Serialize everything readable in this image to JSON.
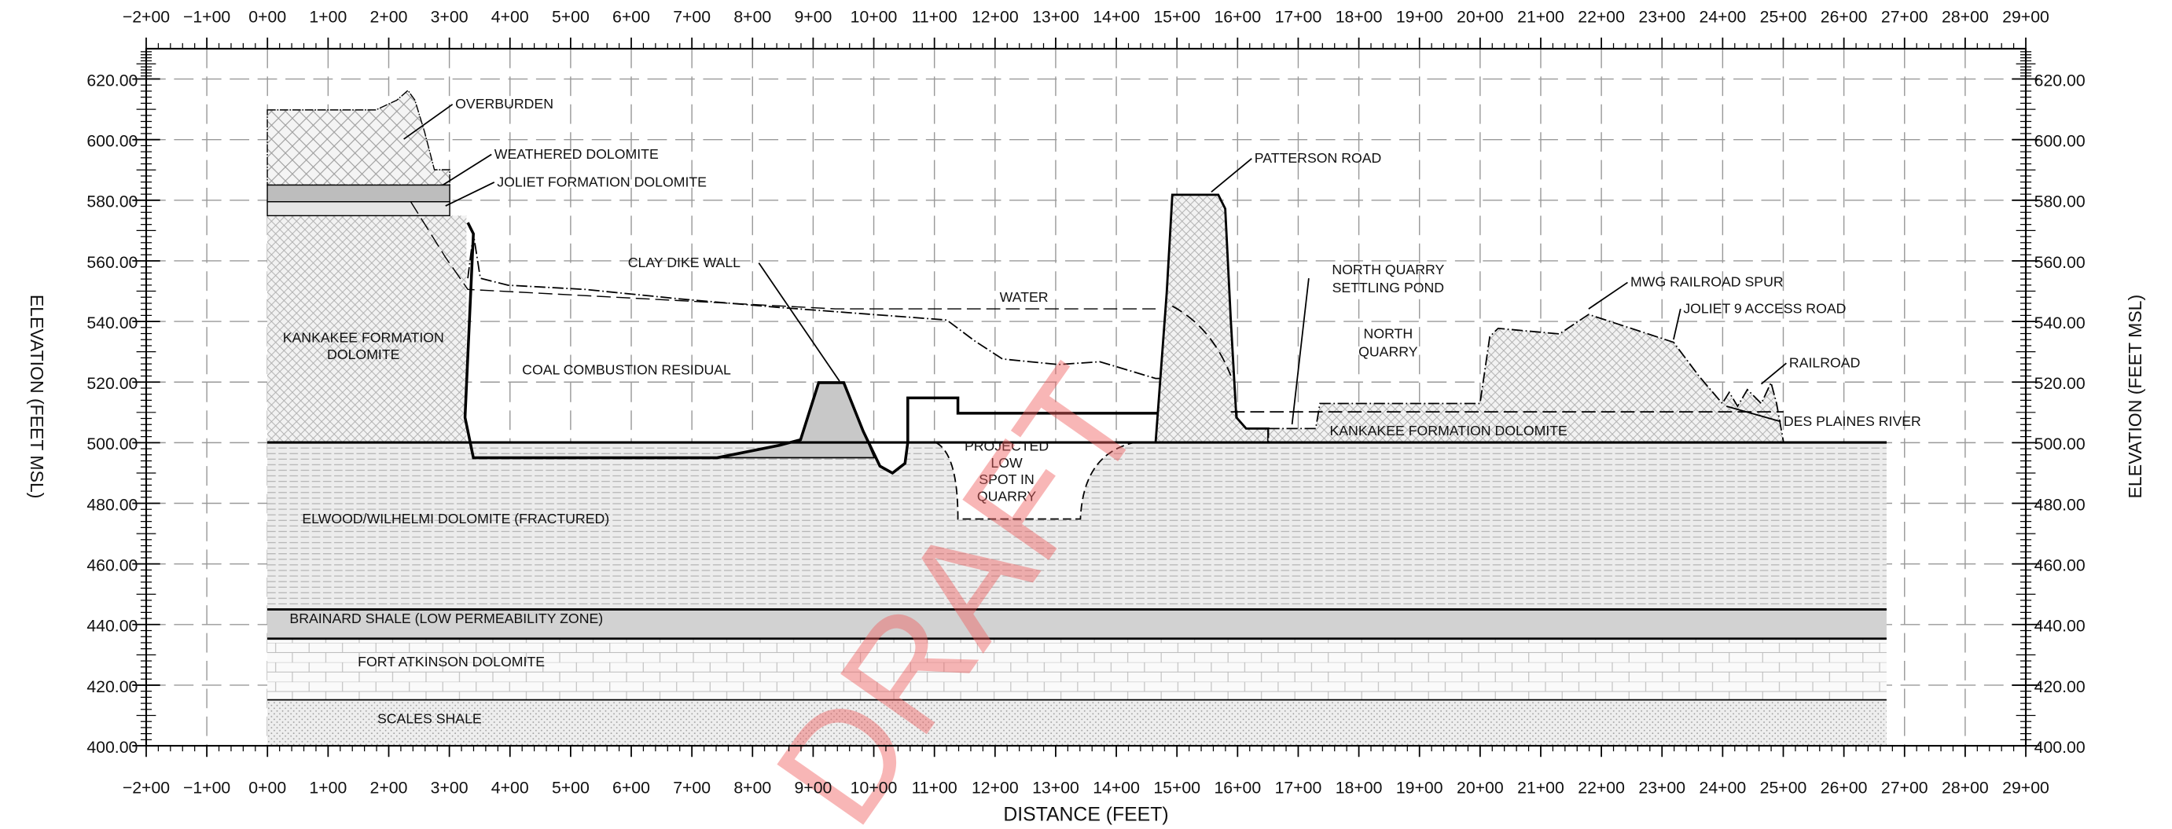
{
  "axes": {
    "x_label": "DISTANCE (FEET)",
    "y_label": "ELEVATION (FEET MSL)",
    "y2_label": "ELEVATION (FEET MSL)",
    "xlim": [
      -200,
      2900
    ],
    "ylim": [
      400,
      630
    ],
    "xticks": [
      {
        "value": -200,
        "label": "−2+00"
      },
      {
        "value": -100,
        "label": "−1+00"
      },
      {
        "value": 0,
        "label": "0+00"
      },
      {
        "value": 100,
        "label": "1+00"
      },
      {
        "value": 200,
        "label": "2+00"
      },
      {
        "value": 300,
        "label": "3+00"
      },
      {
        "value": 400,
        "label": "4+00"
      },
      {
        "value": 500,
        "label": "5+00"
      },
      {
        "value": 600,
        "label": "6+00"
      },
      {
        "value": 700,
        "label": "7+00"
      },
      {
        "value": 800,
        "label": "8+00"
      },
      {
        "value": 900,
        "label": "9+00"
      },
      {
        "value": 1000,
        "label": "10+00"
      },
      {
        "value": 1100,
        "label": "11+00"
      },
      {
        "value": 1200,
        "label": "12+00"
      },
      {
        "value": 1300,
        "label": "13+00"
      },
      {
        "value": 1400,
        "label": "14+00"
      },
      {
        "value": 1500,
        "label": "15+00"
      },
      {
        "value": 1600,
        "label": "16+00"
      },
      {
        "value": 1700,
        "label": "17+00"
      },
      {
        "value": 1800,
        "label": "18+00"
      },
      {
        "value": 1900,
        "label": "19+00"
      },
      {
        "value": 2000,
        "label": "20+00"
      },
      {
        "value": 2100,
        "label": "21+00"
      },
      {
        "value": 2200,
        "label": "22+00"
      },
      {
        "value": 2300,
        "label": "23+00"
      },
      {
        "value": 2400,
        "label": "24+00"
      },
      {
        "value": 2500,
        "label": "25+00"
      },
      {
        "value": 2600,
        "label": "26+00"
      },
      {
        "value": 2700,
        "label": "27+00"
      },
      {
        "value": 2800,
        "label": "28+00"
      },
      {
        "value": 2900,
        "label": "29+00"
      }
    ],
    "yticks": [
      {
        "value": 400,
        "label": "400.00"
      },
      {
        "value": 420,
        "label": "420.00"
      },
      {
        "value": 440,
        "label": "440.00"
      },
      {
        "value": 460,
        "label": "460.00"
      },
      {
        "value": 480,
        "label": "480.00"
      },
      {
        "value": 500,
        "label": "500.00"
      },
      {
        "value": 520,
        "label": "520.00"
      },
      {
        "value": 540,
        "label": "540.00"
      },
      {
        "value": 560,
        "label": "560.00"
      },
      {
        "value": 580,
        "label": "580.00"
      },
      {
        "value": 600,
        "label": "600.00"
      },
      {
        "value": 620,
        "label": "620.00"
      }
    ]
  },
  "labels": {
    "overburden": "OVERBURDEN",
    "weathered_dolomite": "WEATHERED DOLOMITE",
    "joliet": "JOLIET FORMATION DOLOMITE",
    "kankakee_left": [
      "KANKAKEE FORMATION",
      "DOLOMITE"
    ],
    "clay_dike": "CLAY DIKE WALL",
    "water": "WATER",
    "ccr": "COAL COMBUSTION RESIDUAL",
    "patterson": "PATTERSON ROAD",
    "settling_pond": [
      "NORTH QUARRY",
      "SETTLING POND"
    ],
    "north_quarry": [
      "NORTH",
      "QUARRY"
    ],
    "mwg": "MWG RAILROAD SPUR",
    "access_road": "JOLIET 9 ACCESS ROAD",
    "railroad": "RAILROAD",
    "des_plaines": "DES PLAINES RIVER",
    "kankakee_right": "KANKAKEE FORMATION DOLOMITE",
    "low_spot": [
      "PROJECTED",
      "LOW",
      "SPOT IN",
      "QUARRY"
    ],
    "elwood": "ELWOOD/WILHELMI DOLOMITE (FRACTURED)",
    "brainard": "BRAINARD SHALE (LOW PERMEABILITY ZONE)",
    "fort_atkinson": "FORT ATKINSON DOLOMITE",
    "scales": "SCALES SHALE"
  },
  "watermark": "DRAFT"
}
